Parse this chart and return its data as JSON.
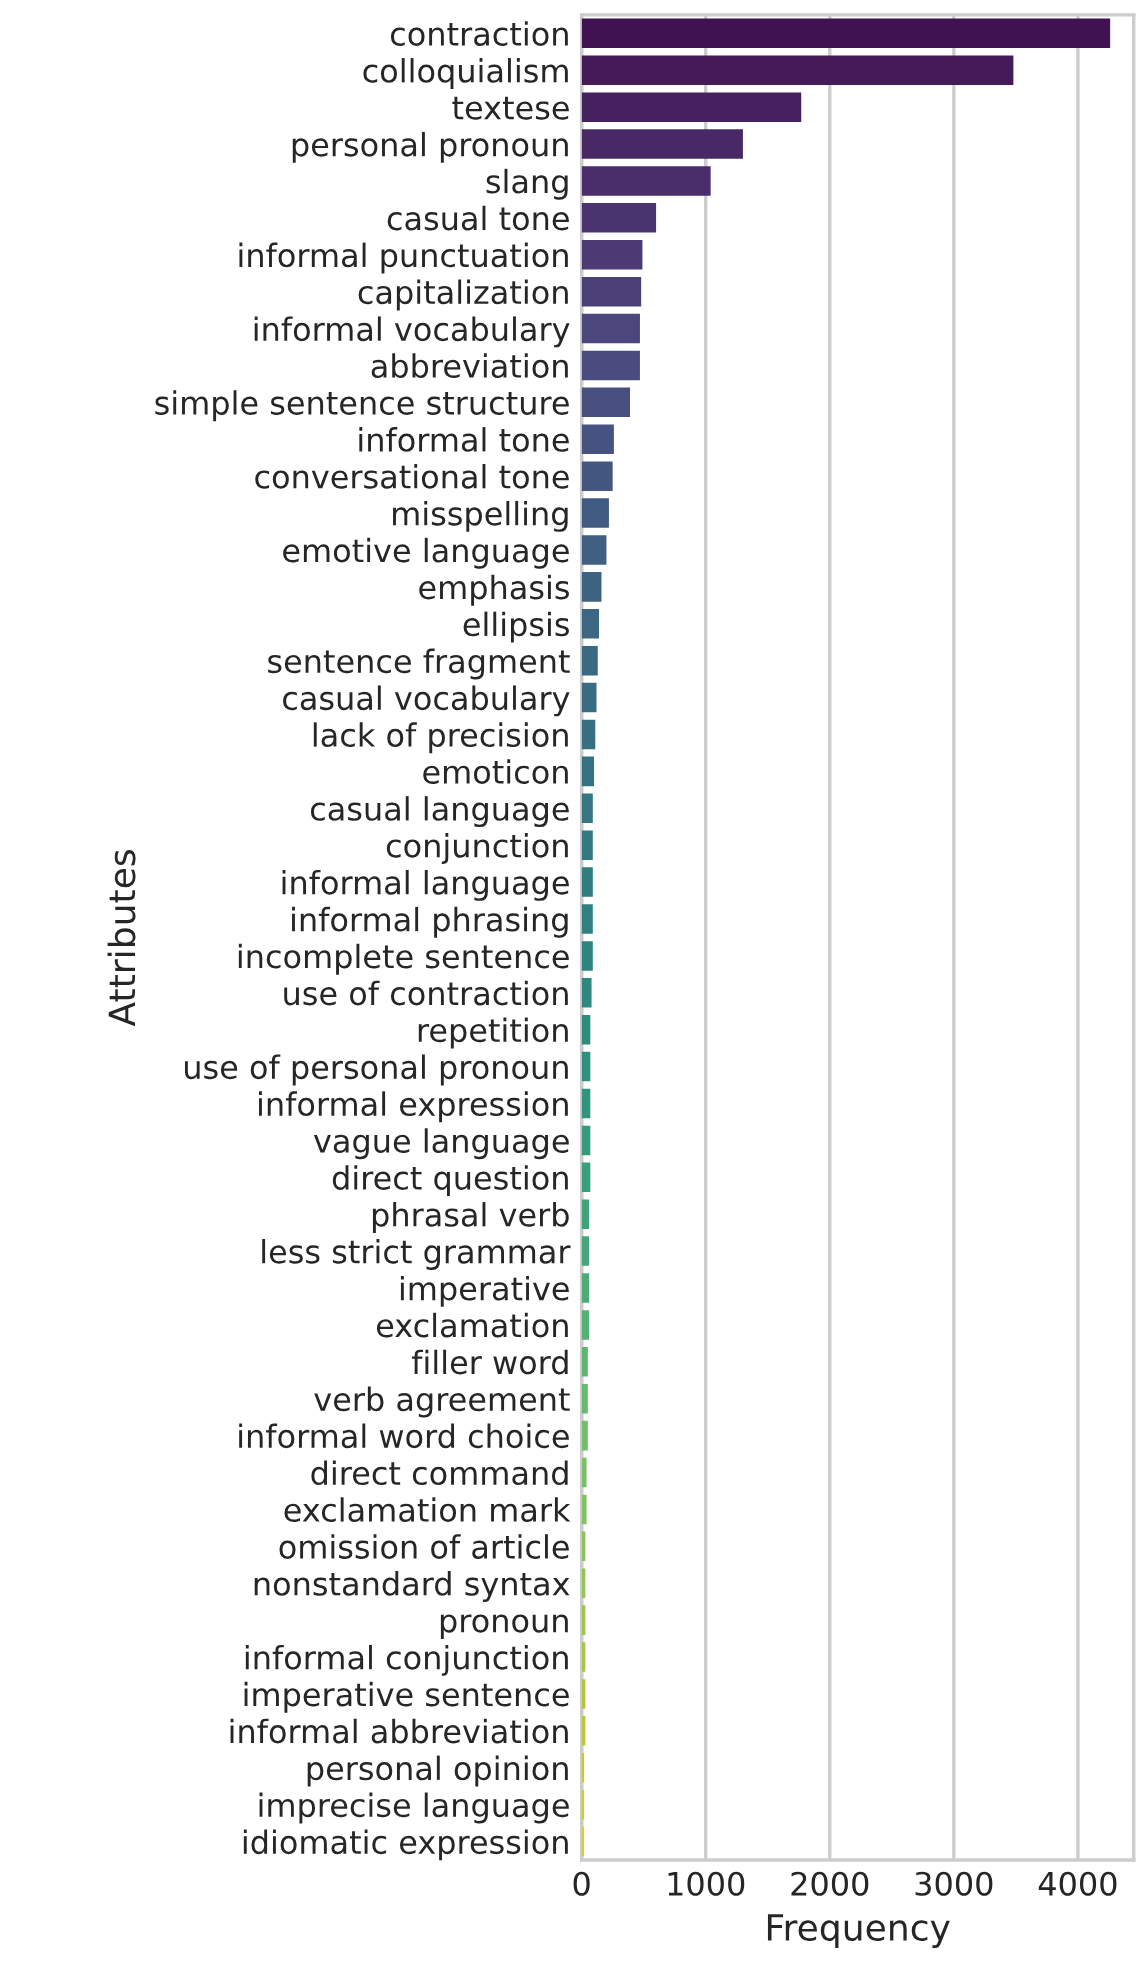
{
  "chart_data": {
    "type": "bar",
    "orientation": "horizontal",
    "xlabel": "Frequency",
    "ylabel": "Attributes",
    "categories": [
      "contraction",
      "colloquialism",
      "textese",
      "personal pronoun",
      "slang",
      "casual tone",
      "informal punctuation",
      "capitalization",
      "informal vocabulary",
      "abbreviation",
      "simple sentence structure",
      "informal tone",
      "conversational tone",
      "misspelling",
      "emotive language",
      "emphasis",
      "ellipsis",
      "sentence fragment",
      "casual vocabulary",
      "lack of precision",
      "emoticon",
      "casual language",
      "conjunction",
      "informal language",
      "informal phrasing",
      "incomplete sentence",
      "use of contraction",
      "repetition",
      "use of personal pronoun",
      "informal expression",
      "vague language",
      "direct question",
      "phrasal verb",
      "less strict grammar",
      "imperative",
      "exclamation",
      "filler word",
      "verb agreement",
      "informal word choice",
      "direct command",
      "exclamation mark",
      "omission of article",
      "nonstandard syntax",
      "pronoun",
      "informal conjunction",
      "imperative sentence",
      "informal abbreviation",
      "personal opinion",
      "imprecise language",
      "idiomatic expression"
    ],
    "values": [
      4260,
      3480,
      1770,
      1300,
      1040,
      600,
      490,
      480,
      470,
      470,
      390,
      260,
      250,
      220,
      200,
      160,
      140,
      130,
      120,
      110,
      100,
      90,
      90,
      90,
      90,
      90,
      80,
      70,
      70,
      70,
      70,
      70,
      60,
      60,
      60,
      60,
      50,
      50,
      50,
      40,
      40,
      30,
      30,
      30,
      30,
      30,
      30,
      20,
      20,
      20
    ],
    "colors": [
      "#411251",
      "#441a58",
      "#46215f",
      "#482865",
      "#492e6b",
      "#4a3470",
      "#4b3a74",
      "#4b4078",
      "#4b467b",
      "#4a4b7e",
      "#484f7f",
      "#465380",
      "#445781",
      "#425b82",
      "#405f82",
      "#3e6282",
      "#3c6682",
      "#3a6982",
      "#396c82",
      "#377082",
      "#357382",
      "#347681",
      "#327a81",
      "#307d80",
      "#2f8080",
      "#2e847f",
      "#2e887f",
      "#2e8c7e",
      "#2f907e",
      "#31957d",
      "#35997c",
      "#399e7b",
      "#3fa279",
      "#45a778",
      "#4dac76",
      "#55b174",
      "#5eb572",
      "#68ba6f",
      "#71be6b",
      "#79c066",
      "#81c260",
      "#8ac35a",
      "#93c553",
      "#9cc64c",
      "#a5c744",
      "#aec83d",
      "#b8c837",
      "#c1c933",
      "#cbcb32",
      "#d7ce37"
    ],
    "xlim": [
      0,
      4450
    ],
    "xticks": [
      0,
      1000,
      2000,
      3000,
      4000
    ],
    "grid": "x",
    "legend": false
  }
}
